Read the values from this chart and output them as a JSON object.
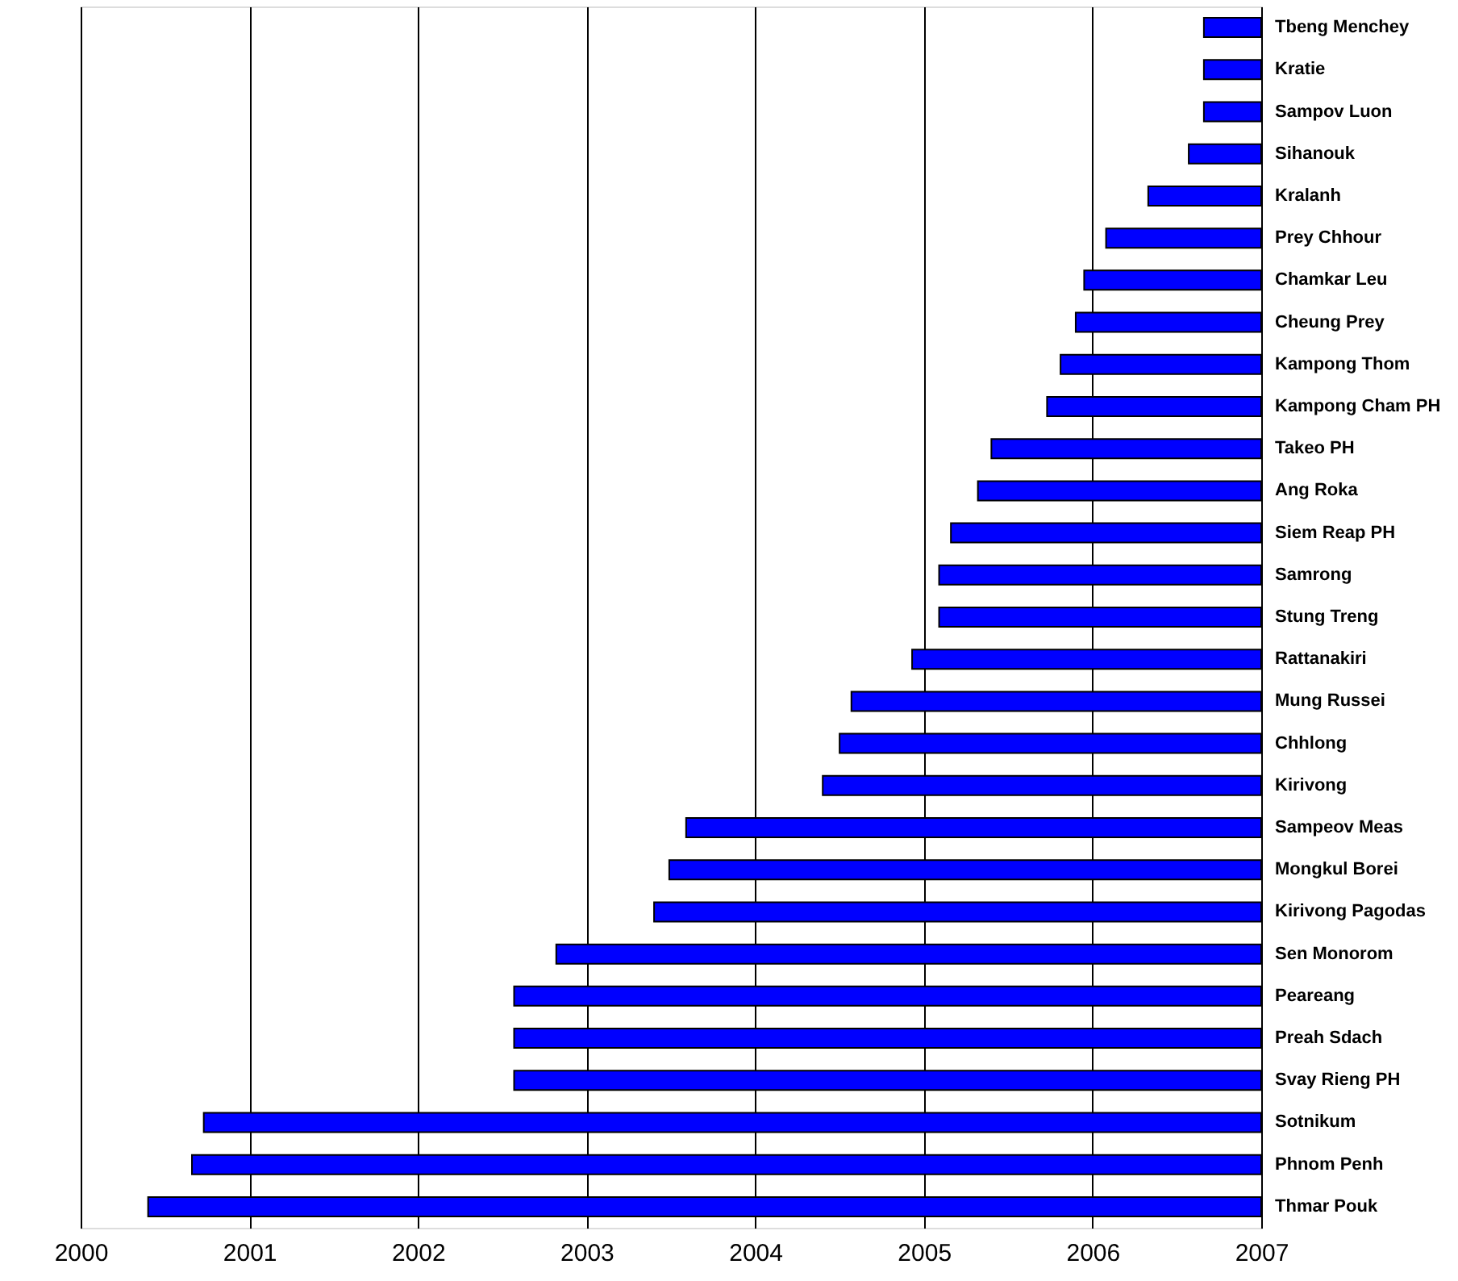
{
  "chart_data": {
    "type": "bar",
    "orientation": "horizontal",
    "categories": [
      "Tbeng Menchey",
      "Kratie",
      "Sampov Luon",
      "Sihanouk",
      "Kralanh",
      "Prey Chhour",
      "Chamkar Leu",
      "Cheung Prey",
      "Kampong Thom",
      "Kampong Cham PH",
      "Takeo PH",
      "Ang Roka",
      "Siem Reap PH",
      "Samrong",
      "Stung Treng",
      "Rattanakiri",
      "Mung Russei",
      "Chhlong",
      "Kirivong",
      "Sampeov Meas",
      "Mongkul Borei",
      "Kirivong Pagodas",
      "Sen Monorom",
      "Peareang",
      "Preah Sdach",
      "Svay Rieng PH",
      "Sotnikum",
      "Phnom Penh",
      "Thmar Pouk"
    ],
    "base": [
      2006.66,
      2006.66,
      2006.66,
      2006.57,
      2006.33,
      2006.08,
      2005.95,
      2005.9,
      2005.81,
      2005.73,
      2005.4,
      2005.32,
      2005.16,
      2005.09,
      2005.09,
      2004.93,
      2004.57,
      2004.5,
      2004.4,
      2003.59,
      2003.49,
      2003.4,
      2002.82,
      2002.57,
      2002.57,
      2002.57,
      2000.73,
      2000.66,
      2000.4
    ],
    "values": [
      0.34,
      0.34,
      0.34,
      0.43,
      0.67,
      0.92,
      1.05,
      1.1,
      1.19,
      1.27,
      1.6,
      1.68,
      1.84,
      1.91,
      1.91,
      2.07,
      2.43,
      2.5,
      2.6,
      3.41,
      3.51,
      3.6,
      4.18,
      4.43,
      4.43,
      4.43,
      6.27,
      6.34,
      6.6
    ],
    "color": "#0000ff",
    "xlim": [
      2000,
      2007
    ],
    "xticks": [
      2000,
      2001,
      2002,
      2003,
      2004,
      2005,
      2006,
      2007
    ],
    "grid": "x"
  }
}
